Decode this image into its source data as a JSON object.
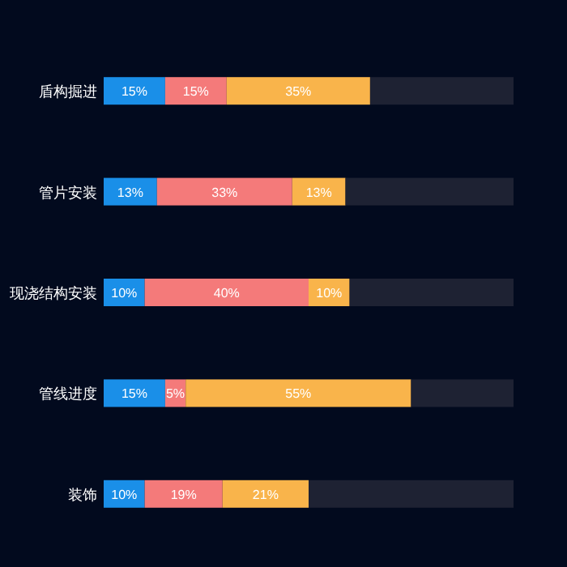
{
  "chart_data": {
    "type": "bar",
    "orientation": "horizontal",
    "stacked": true,
    "categories": [
      "盾构掘进",
      "管片安装",
      "现浇结构安装",
      "管线进度",
      "装饰"
    ],
    "series": [
      {
        "color": "#1a8fe8",
        "values": [
          15,
          13,
          10,
          15,
          10
        ],
        "value_labels": [
          "15%",
          "13%",
          "10%",
          "15%",
          "10%"
        ]
      },
      {
        "color": "#f47a7a",
        "values": [
          15,
          33,
          40,
          5,
          19
        ],
        "value_labels": [
          "15%",
          "33%",
          "40%",
          "5%",
          "19%"
        ]
      },
      {
        "color": "#f9b44b",
        "values": [
          35,
          13,
          10,
          55,
          21
        ],
        "value_labels": [
          "35%",
          "13%",
          "10%",
          "55%",
          "21%"
        ]
      },
      {
        "color": "#1e2233",
        "values": [
          35,
          41,
          40,
          25,
          50
        ],
        "value_labels": [
          null,
          null,
          null,
          null,
          null
        ]
      }
    ],
    "xlim": [
      0,
      100
    ],
    "tick_labels": "y"
  }
}
